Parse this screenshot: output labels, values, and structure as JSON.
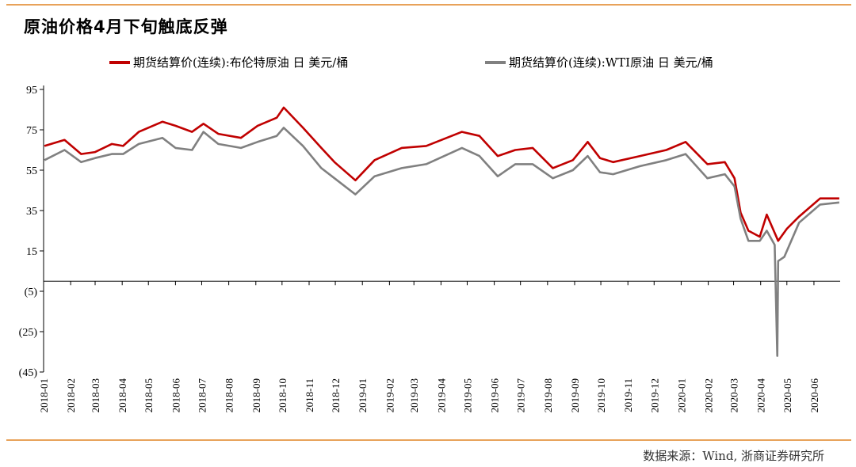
{
  "title": "原油价格4月下旬触底反弹",
  "source": "数据来源：Wind, 浙商证券研究所",
  "chart_data": {
    "type": "line",
    "title": "原油价格4月下旬触底反弹",
    "xlabel": "",
    "ylabel": "",
    "ylim": [
      -45,
      95
    ],
    "y_ticks": [
      95,
      75,
      55,
      35,
      15,
      -5,
      -25,
      -45
    ],
    "y_tick_labels": [
      "95",
      "75",
      "55",
      "35",
      "15",
      "(5)",
      "(25)",
      "(45)"
    ],
    "x_ticks": [
      "2018-01",
      "2018-02",
      "2018-03",
      "2018-04",
      "2018-05",
      "2018-06",
      "2018-07",
      "2018-08",
      "2018-09",
      "2018-10",
      "2018-11",
      "2018-12",
      "2019-01",
      "2019-02",
      "2019-03",
      "2019-04",
      "2019-05",
      "2019-06",
      "2019-07",
      "2019-08",
      "2019-09",
      "2019-10",
      "2019-11",
      "2019-12",
      "2020-01",
      "2020-02",
      "2020-03",
      "2020-04",
      "2020-05",
      "2020-06"
    ],
    "legend_position": "top",
    "grid": false,
    "series": [
      {
        "name": "期货结算价(连续):布伦特原油 日 美元/桶",
        "color": "#c00000",
        "points": [
          [
            "2018-01-02",
            67
          ],
          [
            "2018-01-25",
            70
          ],
          [
            "2018-02-13",
            63
          ],
          [
            "2018-03-01",
            64
          ],
          [
            "2018-03-20",
            68
          ],
          [
            "2018-04-02",
            67
          ],
          [
            "2018-04-20",
            74
          ],
          [
            "2018-05-17",
            79
          ],
          [
            "2018-06-01",
            77
          ],
          [
            "2018-06-20",
            74
          ],
          [
            "2018-07-03",
            78
          ],
          [
            "2018-07-20",
            73
          ],
          [
            "2018-08-15",
            71
          ],
          [
            "2018-09-03",
            77
          ],
          [
            "2018-09-25",
            81
          ],
          [
            "2018-10-03",
            86
          ],
          [
            "2018-10-25",
            76
          ],
          [
            "2018-11-15",
            66
          ],
          [
            "2018-11-30",
            59
          ],
          [
            "2018-12-24",
            50
          ],
          [
            "2019-01-15",
            60
          ],
          [
            "2019-02-15",
            66
          ],
          [
            "2019-03-15",
            67
          ],
          [
            "2019-04-25",
            74
          ],
          [
            "2019-05-15",
            72
          ],
          [
            "2019-06-05",
            62
          ],
          [
            "2019-06-25",
            65
          ],
          [
            "2019-07-15",
            66
          ],
          [
            "2019-08-07",
            56
          ],
          [
            "2019-08-30",
            60
          ],
          [
            "2019-09-16",
            69
          ],
          [
            "2019-09-30",
            61
          ],
          [
            "2019-10-15",
            59
          ],
          [
            "2019-11-15",
            62
          ],
          [
            "2019-12-15",
            65
          ],
          [
            "2020-01-06",
            69
          ],
          [
            "2020-01-31",
            58
          ],
          [
            "2020-02-20",
            59
          ],
          [
            "2020-03-02",
            51
          ],
          [
            "2020-03-09",
            34
          ],
          [
            "2020-03-18",
            25
          ],
          [
            "2020-03-31",
            22
          ],
          [
            "2020-04-08",
            33
          ],
          [
            "2020-04-21",
            20
          ],
          [
            "2020-05-01",
            26
          ],
          [
            "2020-05-15",
            32
          ],
          [
            "2020-06-08",
            41
          ],
          [
            "2020-06-30",
            41
          ]
        ]
      },
      {
        "name": "期货结算价(连续):WTI原油 日 美元/桶",
        "color": "#808080",
        "points": [
          [
            "2018-01-02",
            60
          ],
          [
            "2018-01-25",
            65
          ],
          [
            "2018-02-13",
            59
          ],
          [
            "2018-03-01",
            61
          ],
          [
            "2018-03-20",
            63
          ],
          [
            "2018-04-02",
            63
          ],
          [
            "2018-04-20",
            68
          ],
          [
            "2018-05-17",
            71
          ],
          [
            "2018-06-01",
            66
          ],
          [
            "2018-06-20",
            65
          ],
          [
            "2018-07-03",
            74
          ],
          [
            "2018-07-20",
            68
          ],
          [
            "2018-08-15",
            66
          ],
          [
            "2018-09-03",
            69
          ],
          [
            "2018-09-25",
            72
          ],
          [
            "2018-10-03",
            76
          ],
          [
            "2018-10-25",
            67
          ],
          [
            "2018-11-15",
            56
          ],
          [
            "2018-11-30",
            51
          ],
          [
            "2018-12-24",
            43
          ],
          [
            "2019-01-15",
            52
          ],
          [
            "2019-02-15",
            56
          ],
          [
            "2019-03-15",
            58
          ],
          [
            "2019-04-25",
            66
          ],
          [
            "2019-05-15",
            62
          ],
          [
            "2019-06-05",
            52
          ],
          [
            "2019-06-25",
            58
          ],
          [
            "2019-07-15",
            58
          ],
          [
            "2019-08-07",
            51
          ],
          [
            "2019-08-30",
            55
          ],
          [
            "2019-09-16",
            62
          ],
          [
            "2019-09-30",
            54
          ],
          [
            "2019-10-15",
            53
          ],
          [
            "2019-11-15",
            57
          ],
          [
            "2019-12-15",
            60
          ],
          [
            "2020-01-06",
            63
          ],
          [
            "2020-01-31",
            51
          ],
          [
            "2020-02-20",
            53
          ],
          [
            "2020-03-02",
            47
          ],
          [
            "2020-03-09",
            31
          ],
          [
            "2020-03-18",
            20
          ],
          [
            "2020-03-31",
            20
          ],
          [
            "2020-04-08",
            25
          ],
          [
            "2020-04-17",
            18
          ],
          [
            "2020-04-20",
            -37
          ],
          [
            "2020-04-21",
            10
          ],
          [
            "2020-04-28",
            12
          ],
          [
            "2020-05-15",
            29
          ],
          [
            "2020-06-08",
            38
          ],
          [
            "2020-06-30",
            39
          ]
        ]
      }
    ]
  }
}
